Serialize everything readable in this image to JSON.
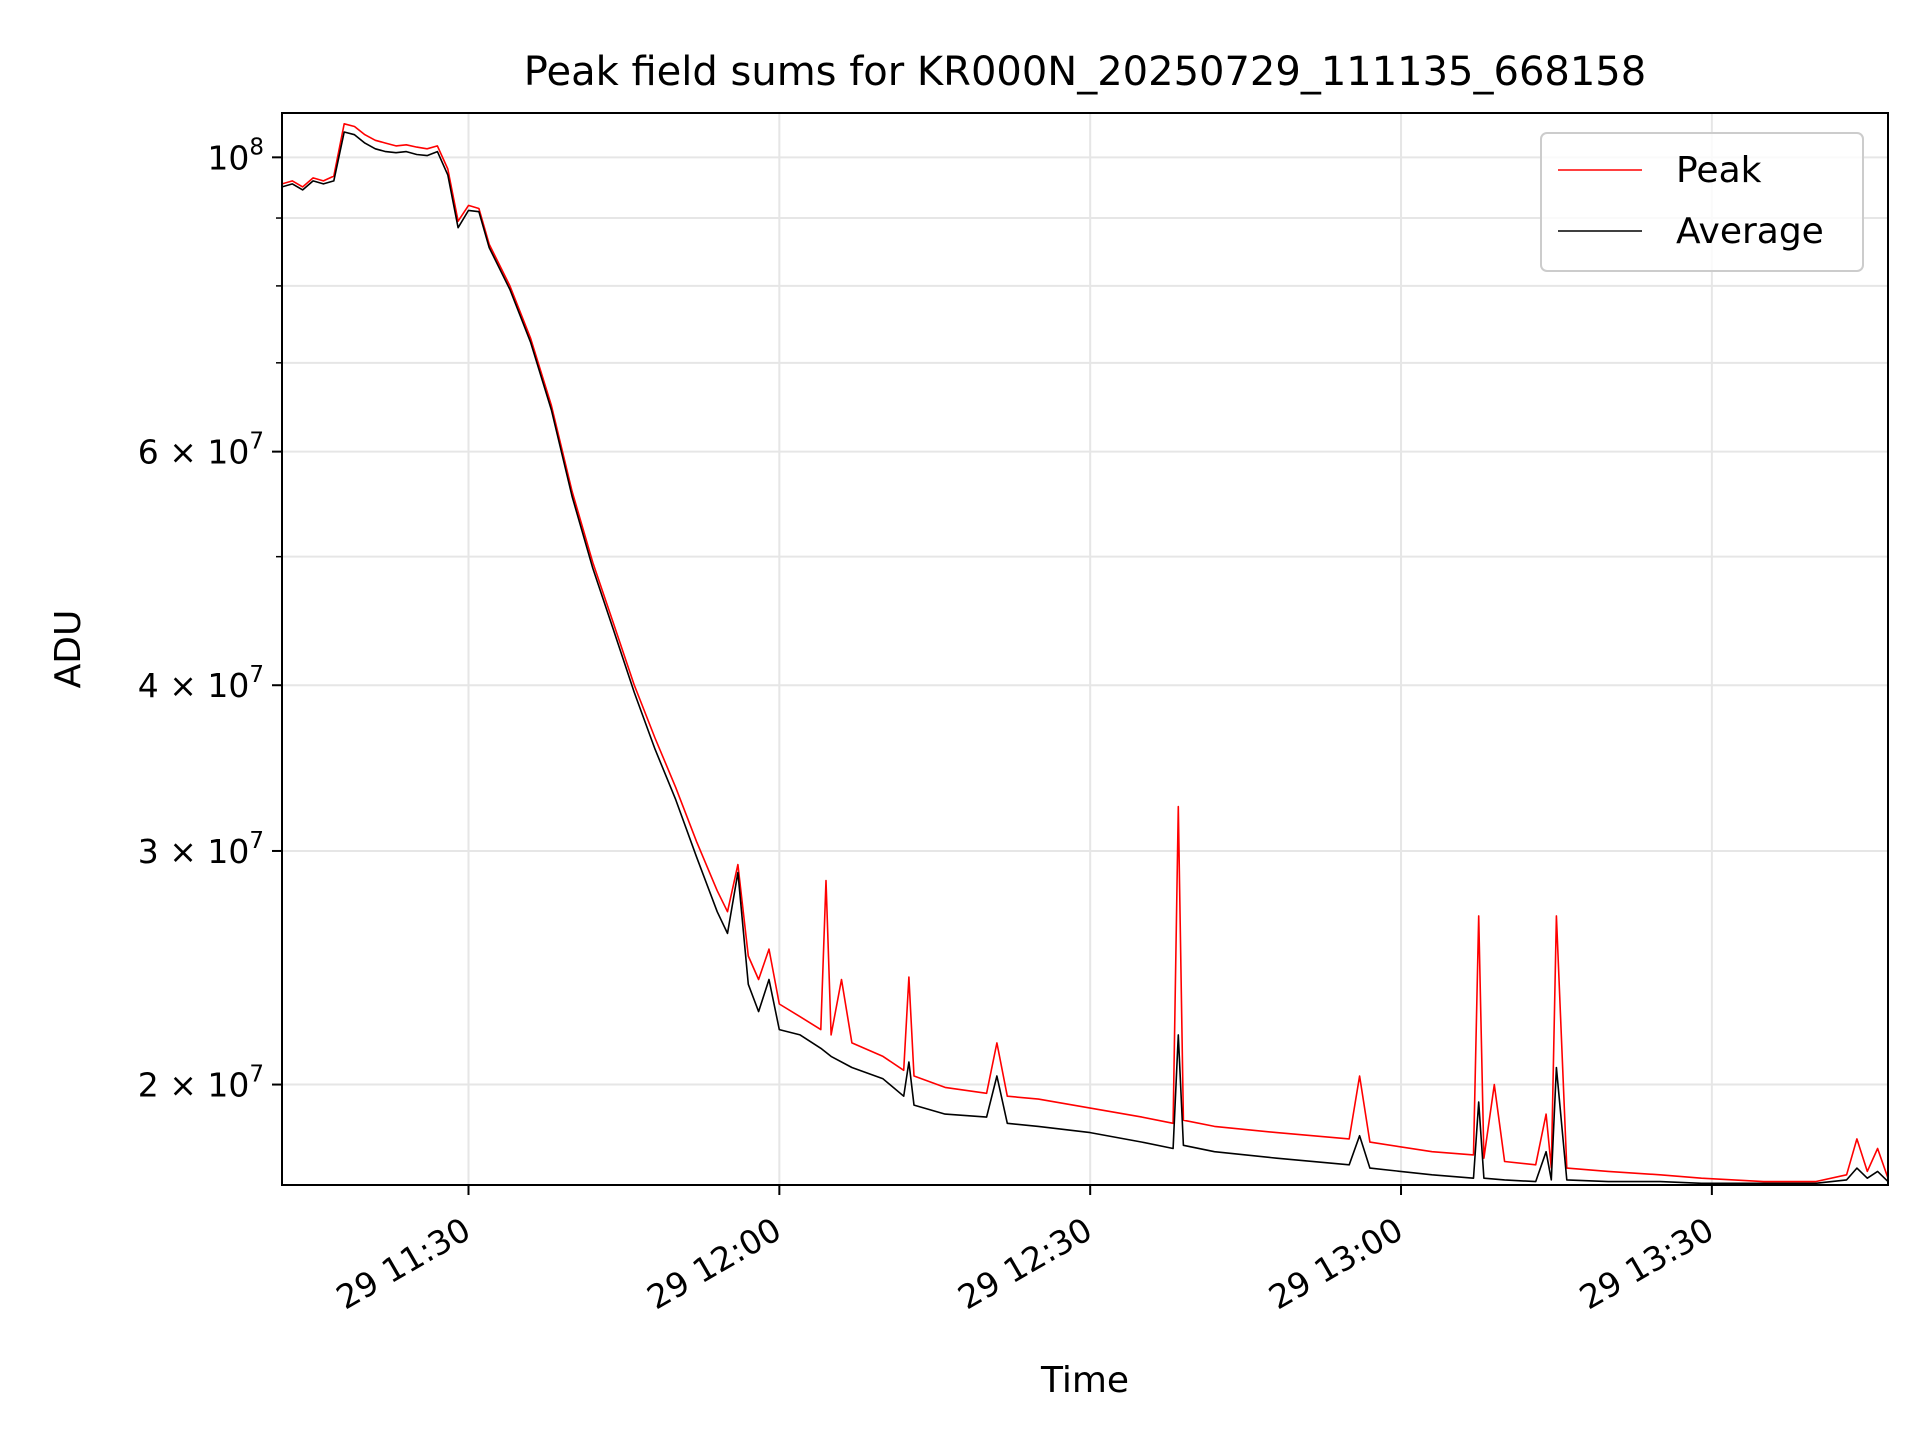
{
  "chart_data": {
    "type": "line",
    "title": "Peak field sums for KR000N_20250729_111135_668158",
    "xlabel": "Time",
    "ylabel": "ADU",
    "yscale": "log",
    "xlim": [
      "2025-07-29 11:12",
      "2025-07-29 13:47"
    ],
    "ylim": [
      16800000,
      108000000
    ],
    "grid": true,
    "legend_position": "top-right",
    "x_ticks": [
      {
        "x": "2025-07-29 11:30",
        "label": "29 11:30"
      },
      {
        "x": "2025-07-29 12:00",
        "label": "29 12:00"
      },
      {
        "x": "2025-07-29 12:30",
        "label": "29 12:30"
      },
      {
        "x": "2025-07-29 13:00",
        "label": "29 13:00"
      },
      {
        "x": "2025-07-29 13:30",
        "label": "29 13:30"
      }
    ],
    "y_ticks": [
      {
        "value": 100000000,
        "base": "10",
        "exp": "8"
      },
      {
        "value": 60000000,
        "base": "6 × 10",
        "exp": "7"
      },
      {
        "value": 40000000,
        "base": "4 × 10",
        "exp": "7"
      },
      {
        "value": 30000000,
        "base": "3 × 10",
        "exp": "7"
      },
      {
        "value": 20000000,
        "base": "2 × 10",
        "exp": "7"
      }
    ],
    "y_minor_ticks": [
      90000000,
      80000000,
      70000000,
      50000000
    ],
    "series": [
      {
        "name": "Peak",
        "color": "#ff0000",
        "points": [
          [
            "2025-07-29 11:12",
            95500000
          ],
          [
            "2025-07-29 11:13",
            96000000
          ],
          [
            "2025-07-29 11:14",
            95000000
          ],
          [
            "2025-07-29 11:15",
            96500000
          ],
          [
            "2025-07-29 11:16",
            96000000
          ],
          [
            "2025-07-29 11:17",
            96800000
          ],
          [
            "2025-07-29 11:18",
            106000000
          ],
          [
            "2025-07-29 11:19",
            105500000
          ],
          [
            "2025-07-29 11:20",
            104000000
          ],
          [
            "2025-07-29 11:21",
            103000000
          ],
          [
            "2025-07-29 11:22",
            102500000
          ],
          [
            "2025-07-29 11:23",
            102000000
          ],
          [
            "2025-07-29 11:24",
            102200000
          ],
          [
            "2025-07-29 11:25",
            101800000
          ],
          [
            "2025-07-29 11:26",
            101500000
          ],
          [
            "2025-07-29 11:27",
            102000000
          ],
          [
            "2025-07-29 11:28",
            98000000
          ],
          [
            "2025-07-29 11:29",
            89500000
          ],
          [
            "2025-07-29 11:30",
            92000000
          ],
          [
            "2025-07-29 11:31",
            91500000
          ],
          [
            "2025-07-29 11:32",
            86000000
          ],
          [
            "2025-07-29 11:34",
            80000000
          ],
          [
            "2025-07-29 11:36",
            73000000
          ],
          [
            "2025-07-29 11:38",
            65000000
          ],
          [
            "2025-07-29 11:40",
            56000000
          ],
          [
            "2025-07-29 11:42",
            49500000
          ],
          [
            "2025-07-29 11:44",
            44500000
          ],
          [
            "2025-07-29 11:46",
            40000000
          ],
          [
            "2025-07-29 11:48",
            36500000
          ],
          [
            "2025-07-29 11:50",
            33500000
          ],
          [
            "2025-07-29 11:52",
            30500000
          ],
          [
            "2025-07-29 11:54",
            28000000
          ],
          [
            "2025-07-29 11:55",
            27000000
          ],
          [
            "2025-07-29 11:56",
            29300000
          ],
          [
            "2025-07-29 11:57",
            25000000
          ],
          [
            "2025-07-29 11:58",
            24000000
          ],
          [
            "2025-07-29 11:59",
            25300000
          ],
          [
            "2025-07-29 12:00",
            23000000
          ],
          [
            "2025-07-29 12:02",
            22500000
          ],
          [
            "2025-07-29 12:04",
            22000000
          ],
          [
            "2025-07-29 12:04.5",
            28500000
          ],
          [
            "2025-07-29 12:05",
            21800000
          ],
          [
            "2025-07-29 12:06",
            24000000
          ],
          [
            "2025-07-29 12:07",
            21500000
          ],
          [
            "2025-07-29 12:10",
            21000000
          ],
          [
            "2025-07-29 12:12",
            20500000
          ],
          [
            "2025-07-29 12:12.5",
            24100000
          ],
          [
            "2025-07-29 12:13",
            20300000
          ],
          [
            "2025-07-29 12:16",
            19900000
          ],
          [
            "2025-07-29 12:20",
            19700000
          ],
          [
            "2025-07-29 12:21",
            21500000
          ],
          [
            "2025-07-29 12:22",
            19600000
          ],
          [
            "2025-07-29 12:25",
            19500000
          ],
          [
            "2025-07-29 12:30",
            19200000
          ],
          [
            "2025-07-29 12:35",
            18900000
          ],
          [
            "2025-07-29 12:38",
            18700000
          ],
          [
            "2025-07-29 12:38.5",
            32400000
          ],
          [
            "2025-07-29 12:39",
            18800000
          ],
          [
            "2025-07-29 12:42",
            18600000
          ],
          [
            "2025-07-29 12:48",
            18400000
          ],
          [
            "2025-07-29 12:55",
            18200000
          ],
          [
            "2025-07-29 12:56",
            20300000
          ],
          [
            "2025-07-29 12:57",
            18100000
          ],
          [
            "2025-07-29 13:03",
            17800000
          ],
          [
            "2025-07-29 13:07",
            17700000
          ],
          [
            "2025-07-29 13:07.5",
            26800000
          ],
          [
            "2025-07-29 13:08",
            17600000
          ],
          [
            "2025-07-29 13:09",
            20000000
          ],
          [
            "2025-07-29 13:10",
            17500000
          ],
          [
            "2025-07-29 13:13",
            17400000
          ],
          [
            "2025-07-29 13:14",
            19000000
          ],
          [
            "2025-07-29 13:14.5",
            17300000
          ],
          [
            "2025-07-29 13:15",
            26800000
          ],
          [
            "2025-07-29 13:16",
            17300000
          ],
          [
            "2025-07-29 13:20",
            17200000
          ],
          [
            "2025-07-29 13:25",
            17100000
          ],
          [
            "2025-07-29 13:29",
            17000000
          ],
          [
            "2025-07-29 13:35",
            16900000
          ],
          [
            "2025-07-29 13:40",
            16900000
          ],
          [
            "2025-07-29 13:43",
            17100000
          ],
          [
            "2025-07-29 13:44",
            18200000
          ],
          [
            "2025-07-29 13:45",
            17200000
          ],
          [
            "2025-07-29 13:46",
            17900000
          ],
          [
            "2025-07-29 13:47",
            17000000
          ]
        ]
      },
      {
        "name": "Average",
        "color": "#000000",
        "points": [
          [
            "2025-07-29 11:12",
            95000000
          ],
          [
            "2025-07-29 11:13",
            95500000
          ],
          [
            "2025-07-29 11:14",
            94500000
          ],
          [
            "2025-07-29 11:15",
            96000000
          ],
          [
            "2025-07-29 11:16",
            95500000
          ],
          [
            "2025-07-29 11:17",
            96000000
          ],
          [
            "2025-07-29 11:18",
            104500000
          ],
          [
            "2025-07-29 11:19",
            104000000
          ],
          [
            "2025-07-29 11:20",
            102500000
          ],
          [
            "2025-07-29 11:21",
            101500000
          ],
          [
            "2025-07-29 11:22",
            101000000
          ],
          [
            "2025-07-29 11:23",
            100800000
          ],
          [
            "2025-07-29 11:24",
            101000000
          ],
          [
            "2025-07-29 11:25",
            100500000
          ],
          [
            "2025-07-29 11:26",
            100300000
          ],
          [
            "2025-07-29 11:27",
            101000000
          ],
          [
            "2025-07-29 11:28",
            97000000
          ],
          [
            "2025-07-29 11:29",
            88500000
          ],
          [
            "2025-07-29 11:30",
            91200000
          ],
          [
            "2025-07-29 11:31",
            91000000
          ],
          [
            "2025-07-29 11:32",
            85500000
          ],
          [
            "2025-07-29 11:34",
            79500000
          ],
          [
            "2025-07-29 11:36",
            72500000
          ],
          [
            "2025-07-29 11:38",
            64500000
          ],
          [
            "2025-07-29 11:40",
            55500000
          ],
          [
            "2025-07-29 11:42",
            49000000
          ],
          [
            "2025-07-29 11:44",
            44000000
          ],
          [
            "2025-07-29 11:46",
            39500000
          ],
          [
            "2025-07-29 11:48",
            35800000
          ],
          [
            "2025-07-29 11:50",
            32800000
          ],
          [
            "2025-07-29 11:52",
            29700000
          ],
          [
            "2025-07-29 11:54",
            27000000
          ],
          [
            "2025-07-29 11:55",
            26000000
          ],
          [
            "2025-07-29 11:56",
            28900000
          ],
          [
            "2025-07-29 11:57",
            23800000
          ],
          [
            "2025-07-29 11:58",
            22700000
          ],
          [
            "2025-07-29 11:59",
            24000000
          ],
          [
            "2025-07-29 12:00",
            22000000
          ],
          [
            "2025-07-29 12:02",
            21800000
          ],
          [
            "2025-07-29 12:04",
            21300000
          ],
          [
            "2025-07-29 12:05",
            21000000
          ],
          [
            "2025-07-29 12:07",
            20600000
          ],
          [
            "2025-07-29 12:10",
            20200000
          ],
          [
            "2025-07-29 12:12",
            19600000
          ],
          [
            "2025-07-29 12:12.5",
            20800000
          ],
          [
            "2025-07-29 12:13",
            19300000
          ],
          [
            "2025-07-29 12:16",
            19000000
          ],
          [
            "2025-07-29 12:20",
            18900000
          ],
          [
            "2025-07-29 12:21",
            20300000
          ],
          [
            "2025-07-29 12:22",
            18700000
          ],
          [
            "2025-07-29 12:25",
            18600000
          ],
          [
            "2025-07-29 12:30",
            18400000
          ],
          [
            "2025-07-29 12:35",
            18100000
          ],
          [
            "2025-07-29 12:38",
            17900000
          ],
          [
            "2025-07-29 12:38.5",
            21800000
          ],
          [
            "2025-07-29 12:39",
            18000000
          ],
          [
            "2025-07-29 12:42",
            17800000
          ],
          [
            "2025-07-29 12:48",
            17600000
          ],
          [
            "2025-07-29 12:55",
            17400000
          ],
          [
            "2025-07-29 12:56",
            18300000
          ],
          [
            "2025-07-29 12:57",
            17300000
          ],
          [
            "2025-07-29 13:03",
            17100000
          ],
          [
            "2025-07-29 13:07",
            17000000
          ],
          [
            "2025-07-29 13:07.5",
            19400000
          ],
          [
            "2025-07-29 13:08",
            17000000
          ],
          [
            "2025-07-29 13:10",
            16950000
          ],
          [
            "2025-07-29 13:13",
            16900000
          ],
          [
            "2025-07-29 13:14",
            17800000
          ],
          [
            "2025-07-29 13:14.5",
            16950000
          ],
          [
            "2025-07-29 13:15",
            20600000
          ],
          [
            "2025-07-29 13:16",
            16950000
          ],
          [
            "2025-07-29 13:20",
            16900000
          ],
          [
            "2025-07-29 13:25",
            16900000
          ],
          [
            "2025-07-29 13:29",
            16850000
          ],
          [
            "2025-07-29 13:35",
            16850000
          ],
          [
            "2025-07-29 13:40",
            16850000
          ],
          [
            "2025-07-29 13:43",
            16950000
          ],
          [
            "2025-07-29 13:44",
            17300000
          ],
          [
            "2025-07-29 13:45",
            17000000
          ],
          [
            "2025-07-29 13:46",
            17200000
          ],
          [
            "2025-07-29 13:47",
            16900000
          ]
        ]
      }
    ]
  }
}
